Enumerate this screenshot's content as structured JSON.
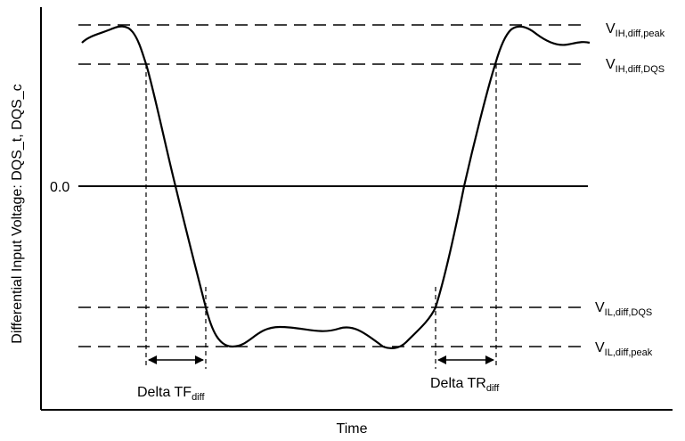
{
  "diagram": {
    "y_axis_label": "Differential Input Voltage: DQS_t, DQS_c",
    "x_axis_label": "Time",
    "zero_label": "0.0",
    "levels": {
      "vih_peak": {
        "main": "V",
        "sub": "IH,diff,peak"
      },
      "vih_dqs": {
        "main": "V",
        "sub": "IH,diff,DQS"
      },
      "vil_dqs": {
        "main": "V",
        "sub": "IL,diff,DQS"
      },
      "vil_peak": {
        "main": "V",
        "sub": "IL,diff,peak"
      }
    },
    "intervals": {
      "tf": {
        "main": "Delta TF",
        "sub": "diff"
      },
      "tr": {
        "main": "Delta TR",
        "sub": "diff"
      }
    }
  }
}
